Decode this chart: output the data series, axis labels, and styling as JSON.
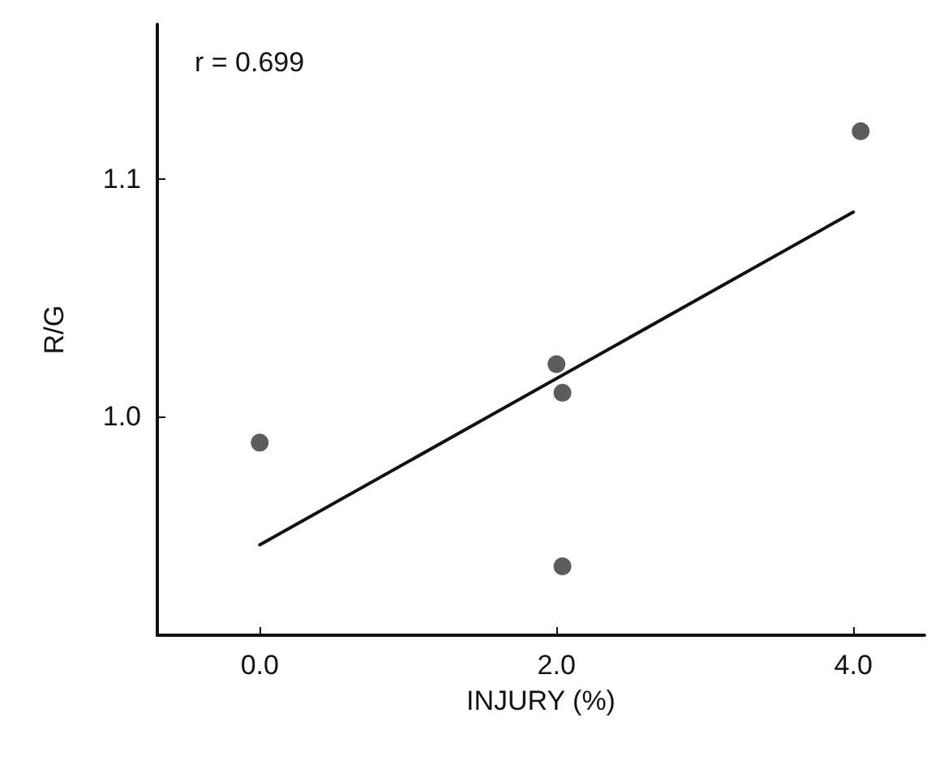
{
  "chart_data": {
    "type": "scatter",
    "xlabel": "INJURY (%)",
    "ylabel": "R/G",
    "annotations": [
      "r = 0.699"
    ],
    "xlim": [
      -0.69,
      4.48
    ],
    "ylim": [
      0.908,
      1.165
    ],
    "xticks": [
      {
        "value": 0,
        "label": "0.0"
      },
      {
        "value": 2,
        "label": "2.0"
      },
      {
        "value": 4,
        "label": "4.0"
      }
    ],
    "yticks": [
      {
        "value": 1,
        "label": "1.0"
      },
      {
        "value": 1.1,
        "label": "1.1"
      }
    ],
    "grid": false,
    "marker": "circle",
    "series": [
      {
        "color": "#333333",
        "x": [
          0.0,
          2.0,
          2.04,
          2.04,
          4.05
        ],
        "values": [
          0.989,
          1.022,
          1.01,
          0.937,
          1.12
        ]
      },
      {
        "type": "line",
        "color": "#111111",
        "marker": "none",
        "line_style": "solid",
        "x": [
          0,
          4
        ],
        "values": [
          0.946,
          1.086
        ]
      }
    ]
  }
}
